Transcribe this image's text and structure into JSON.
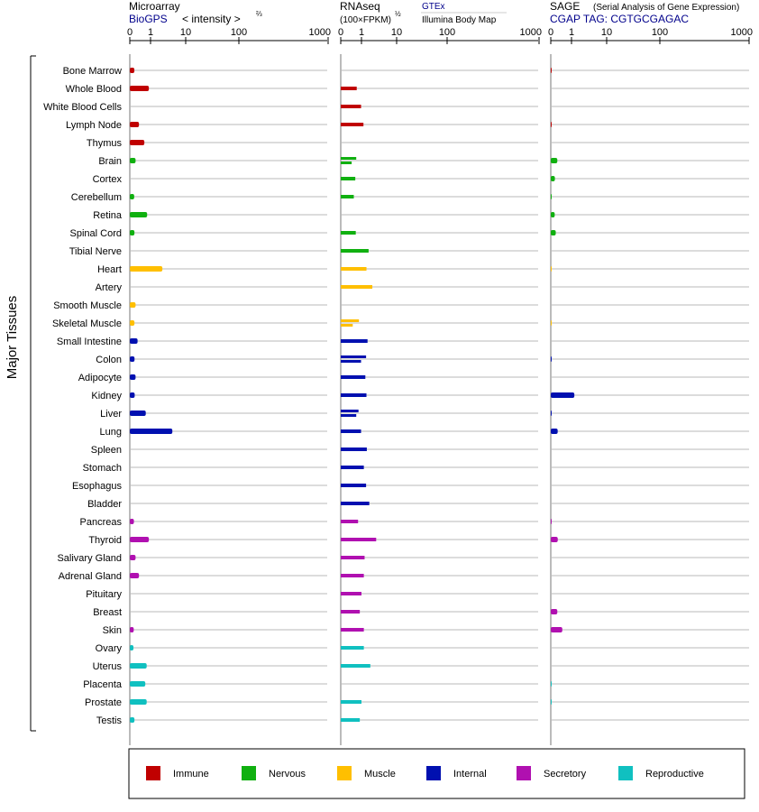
{
  "chart_data": {
    "type": "bar",
    "y_axis_title": "Major Tissues",
    "categories": [
      "Immune",
      "Nervous",
      "Muscle",
      "Internal",
      "Secretory",
      "Reproductive"
    ],
    "category_colors": {
      "Immune": "#c00000",
      "Nervous": "#10b010",
      "Muscle": "#ffbf00",
      "Internal": "#0010b0",
      "Secretory": "#b010b0",
      "Reproductive": "#10c0c0"
    },
    "legend_position": "bottom",
    "tissues": [
      {
        "name": "Bone Marrow",
        "cat": "Immune"
      },
      {
        "name": "Whole Blood",
        "cat": "Immune"
      },
      {
        "name": "White Blood Cells",
        "cat": "Immune"
      },
      {
        "name": "Lymph Node",
        "cat": "Immune"
      },
      {
        "name": "Thymus",
        "cat": "Immune"
      },
      {
        "name": "Brain",
        "cat": "Nervous"
      },
      {
        "name": "Cortex",
        "cat": "Nervous"
      },
      {
        "name": "Cerebellum",
        "cat": "Nervous"
      },
      {
        "name": "Retina",
        "cat": "Nervous"
      },
      {
        "name": "Spinal Cord",
        "cat": "Nervous"
      },
      {
        "name": "Tibial Nerve",
        "cat": "Nervous"
      },
      {
        "name": "Heart",
        "cat": "Muscle"
      },
      {
        "name": "Artery",
        "cat": "Muscle"
      },
      {
        "name": "Smooth Muscle",
        "cat": "Muscle"
      },
      {
        "name": "Skeletal Muscle",
        "cat": "Muscle"
      },
      {
        "name": "Small Intestine",
        "cat": "Internal"
      },
      {
        "name": "Colon",
        "cat": "Internal"
      },
      {
        "name": "Adipocyte",
        "cat": "Internal"
      },
      {
        "name": "Kidney",
        "cat": "Internal"
      },
      {
        "name": "Liver",
        "cat": "Internal"
      },
      {
        "name": "Lung",
        "cat": "Internal"
      },
      {
        "name": "Spleen",
        "cat": "Internal"
      },
      {
        "name": "Stomach",
        "cat": "Internal"
      },
      {
        "name": "Esophagus",
        "cat": "Internal"
      },
      {
        "name": "Bladder",
        "cat": "Internal"
      },
      {
        "name": "Pancreas",
        "cat": "Secretory"
      },
      {
        "name": "Thyroid",
        "cat": "Secretory"
      },
      {
        "name": "Salivary Gland",
        "cat": "Secretory"
      },
      {
        "name": "Adrenal Gland",
        "cat": "Secretory"
      },
      {
        "name": "Pituitary",
        "cat": "Secretory"
      },
      {
        "name": "Breast",
        "cat": "Secretory"
      },
      {
        "name": "Skin",
        "cat": "Secretory"
      },
      {
        "name": "Ovary",
        "cat": "Reproductive"
      },
      {
        "name": "Uterus",
        "cat": "Reproductive"
      },
      {
        "name": "Placenta",
        "cat": "Reproductive"
      },
      {
        "name": "Prostate",
        "cat": "Reproductive"
      },
      {
        "name": "Testis",
        "cat": "Reproductive"
      }
    ],
    "panels": [
      {
        "id": "microarray",
        "title": "Microarray",
        "subtitle": "BioGPS",
        "axis_note": "< intensity >",
        "axis_note_exp": "⅔",
        "ticks": [
          "0",
          "1",
          "10",
          "100",
          "1000"
        ],
        "tick_values": [
          0,
          1,
          10,
          100,
          1000
        ],
        "xlim": [
          0,
          1000
        ],
        "values": [
          3.5,
          30,
          null,
          10,
          20,
          5,
          null,
          3.3,
          26,
          3.6,
          null,
          67,
          null,
          5,
          3.6,
          7.8,
          3.7,
          5,
          3.9,
          23,
          100,
          null,
          null,
          null,
          null,
          3,
          30,
          5,
          10,
          null,
          null,
          2.8,
          2.5,
          25,
          22,
          25,
          3.6
        ]
      },
      {
        "id": "rnaseq",
        "title": "RNAseq",
        "subtitle": "(100×FPKM)",
        "subtitle_exp": "½",
        "source_gtex": "GTEx",
        "source_ibm": "Illumina Body Map",
        "ticks": [
          "0",
          "1",
          "10",
          "100",
          "1000"
        ],
        "tick_values": [
          0,
          1,
          10,
          100,
          1000
        ],
        "xlim": [
          0,
          1000
        ],
        "gtex": [
          null,
          null,
          null,
          null,
          null,
          22,
          20,
          null,
          null,
          null,
          53,
          null,
          null,
          null,
          28,
          null,
          46,
          null,
          null,
          27,
          null,
          null,
          null,
          null,
          null,
          null,
          null,
          null,
          null,
          null,
          null,
          null,
          null,
          null,
          null,
          null,
          null
        ],
        "ibm": [
          null,
          23,
          33,
          39,
          null,
          13,
          null,
          17,
          null,
          21,
          null,
          47,
          64,
          null,
          15,
          50,
          33,
          44,
          47,
          22,
          33,
          48,
          40,
          46,
          55,
          26,
          76,
          42,
          40,
          34,
          30,
          40,
          40,
          58,
          null,
          34,
          30
        ]
      },
      {
        "id": "sage",
        "title": "SAGE",
        "subtitle_note": "(Serial Analysis of Gene Expression)",
        "tag": "CGAP  TAG: CGTGCGAGAC",
        "ticks": [
          "0",
          "1",
          "10",
          "100",
          "1000"
        ],
        "tick_values": [
          0,
          1,
          10,
          100,
          1000
        ],
        "xlim": [
          0,
          1000
        ],
        "values": [
          0.1,
          null,
          null,
          0.1,
          null,
          6,
          3,
          0.1,
          2.8,
          4,
          null,
          0.02,
          null,
          null,
          0.02,
          null,
          0.1,
          null,
          41,
          0.1,
          6.5,
          null,
          null,
          null,
          null,
          0.1,
          6.6,
          null,
          null,
          null,
          6,
          14,
          null,
          null,
          0.1,
          0.1,
          null
        ]
      }
    ]
  }
}
